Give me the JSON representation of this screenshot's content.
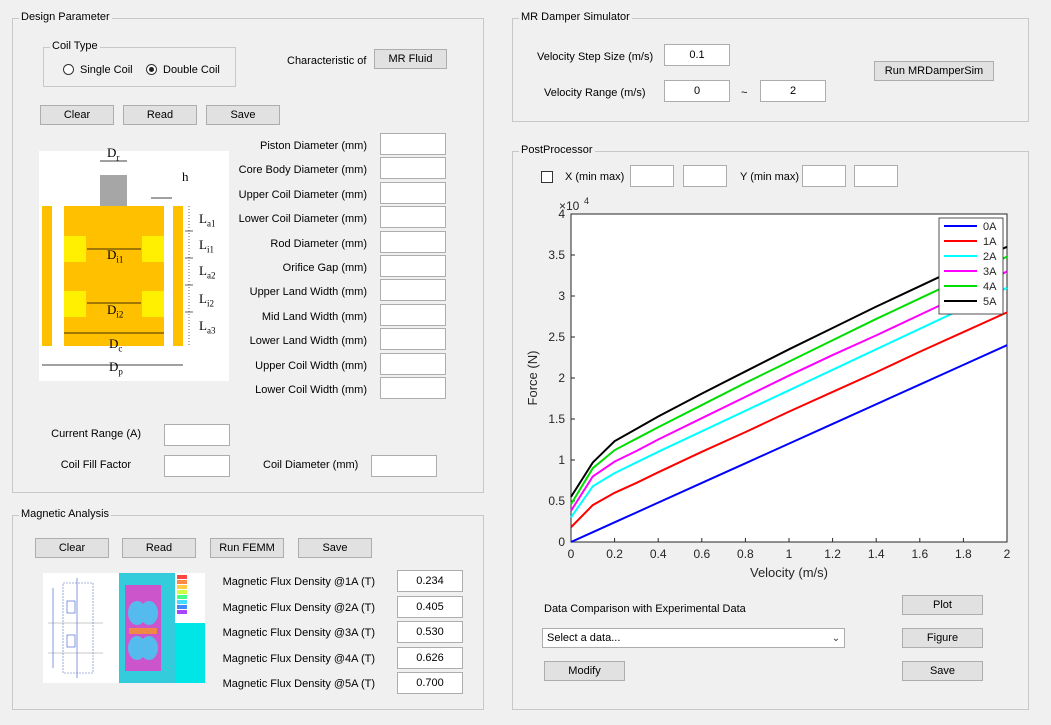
{
  "design": {
    "title": "Design Parameter",
    "coil_type": {
      "title": "Coil Type",
      "options": [
        "Single Coil",
        "Double Coil"
      ],
      "selected": "Double Coil"
    },
    "characteristic_label": "Characteristic of",
    "fluid_button": "MR Fluid",
    "buttons": {
      "clear": "Clear",
      "read": "Read",
      "save": "Save"
    },
    "params": [
      {
        "label": "Piston Diameter (mm)",
        "value": ""
      },
      {
        "label": "Core Body Diameter (mm)",
        "value": ""
      },
      {
        "label": "Upper Coil Diameter (mm)",
        "value": ""
      },
      {
        "label": "Lower Coil Diameter (mm)",
        "value": ""
      },
      {
        "label": "Rod Diameter (mm)",
        "value": ""
      },
      {
        "label": "Orifice Gap (mm)",
        "value": ""
      },
      {
        "label": "Upper Land Width (mm)",
        "value": ""
      },
      {
        "label": "Mid Land Width (mm)",
        "value": ""
      },
      {
        "label": "Lower Land Width (mm)",
        "value": ""
      },
      {
        "label": "Upper Coil Width (mm)",
        "value": ""
      },
      {
        "label": "Lower Coil Width (mm)",
        "value": ""
      }
    ],
    "current_range": {
      "label": "Current Range (A)",
      "value": ""
    },
    "coil_fill": {
      "label": "Coil Fill Factor",
      "value": ""
    },
    "coil_diameter": {
      "label": "Coil Diameter (mm)",
      "value": ""
    },
    "diagram": {
      "Dr": "D",
      "Dr_sub": "r",
      "h": "h",
      "La1": "L",
      "La1_sub": "a1",
      "Li1": "L",
      "Li1_sub": "i1",
      "La2": "L",
      "La2_sub": "a2",
      "Li2": "L",
      "Li2_sub": "i2",
      "La3": "L",
      "La3_sub": "a3",
      "Di1": "D",
      "Di1_sub": "i1",
      "Di2": "D",
      "Di2_sub": "i2",
      "Dc": "D",
      "Dc_sub": "c",
      "Dp": "D",
      "Dp_sub": "p"
    }
  },
  "magnetic": {
    "title": "Magnetic Analysis",
    "buttons": {
      "clear": "Clear",
      "read": "Read",
      "run": "Run FEMM",
      "save": "Save"
    },
    "flux": [
      {
        "label": "Magnetic Flux Density @1A (T)",
        "value": "0.234"
      },
      {
        "label": "Magnetic Flux Density @2A (T)",
        "value": "0.405"
      },
      {
        "label": "Magnetic Flux Density @3A (T)",
        "value": "0.530"
      },
      {
        "label": "Magnetic Flux Density @4A (T)",
        "value": "0.626"
      },
      {
        "label": "Magnetic Flux Density @5A (T)",
        "value": "0.700"
      }
    ]
  },
  "simulator": {
    "title": "MR Damper Simulator",
    "step_label": "Velocity Step Size (m/s)",
    "step_value": "0.1",
    "range_label": "Velocity Range (m/s)",
    "range_min": "0",
    "range_sep": "~",
    "range_max": "2",
    "run_button": "Run MRDamperSim"
  },
  "post": {
    "title": "PostProcessor",
    "x_label": "X (min max)",
    "y_label": "Y (min max)",
    "x_min": "",
    "x_max": "",
    "y_min": "",
    "y_max": "",
    "compare_label": "Data Comparison with Experimental Data",
    "select_value": "Select a data...",
    "buttons": {
      "plot": "Plot",
      "figure": "Figure",
      "modify": "Modify",
      "save": "Save"
    }
  },
  "chart_data": {
    "type": "line",
    "xlabel": "Velocity (m/s)",
    "ylabel": "Force (N)",
    "y_exponent": "4",
    "y_multiplier": "×10",
    "xlim": [
      0,
      2
    ],
    "ylim": [
      0,
      4
    ],
    "xticks": [
      "0",
      "0.2",
      "0.4",
      "0.6",
      "0.8",
      "1",
      "1.2",
      "1.4",
      "1.6",
      "1.8",
      "2"
    ],
    "yticks": [
      "0",
      "0.5",
      "1",
      "1.5",
      "2",
      "2.5",
      "3",
      "3.5",
      "4"
    ],
    "legend_position": "top-right",
    "x": [
      0,
      0.1,
      0.2,
      0.3,
      0.4,
      0.6,
      0.8,
      1.0,
      1.2,
      1.4,
      1.6,
      1.8,
      2.0
    ],
    "series": [
      {
        "name": "0A",
        "color": "#0000ff",
        "values": [
          0,
          0.12,
          0.24,
          0.36,
          0.48,
          0.72,
          0.96,
          1.2,
          1.44,
          1.68,
          1.92,
          2.16,
          2.4
        ]
      },
      {
        "name": "1A",
        "color": "#ff0000",
        "values": [
          0.18,
          0.45,
          0.6,
          0.72,
          0.85,
          1.1,
          1.34,
          1.59,
          1.83,
          2.07,
          2.32,
          2.56,
          2.8
        ]
      },
      {
        "name": "2A",
        "color": "#00ffff",
        "values": [
          0.3,
          0.68,
          0.84,
          0.97,
          1.1,
          1.35,
          1.6,
          1.85,
          2.1,
          2.35,
          2.6,
          2.85,
          3.1
        ]
      },
      {
        "name": "3A",
        "color": "#ff00ff",
        "values": [
          0.38,
          0.8,
          0.98,
          1.11,
          1.25,
          1.51,
          1.77,
          2.03,
          2.28,
          2.52,
          2.77,
          3.02,
          3.3
        ]
      },
      {
        "name": "4A",
        "color": "#00dd00",
        "values": [
          0.46,
          0.9,
          1.12,
          1.26,
          1.4,
          1.67,
          1.94,
          2.2,
          2.46,
          2.72,
          2.97,
          3.22,
          3.48
        ]
      },
      {
        "name": "5A",
        "color": "#000000",
        "values": [
          0.55,
          0.97,
          1.23,
          1.38,
          1.53,
          1.81,
          2.08,
          2.35,
          2.61,
          2.87,
          3.12,
          3.37,
          3.6
        ]
      }
    ]
  }
}
